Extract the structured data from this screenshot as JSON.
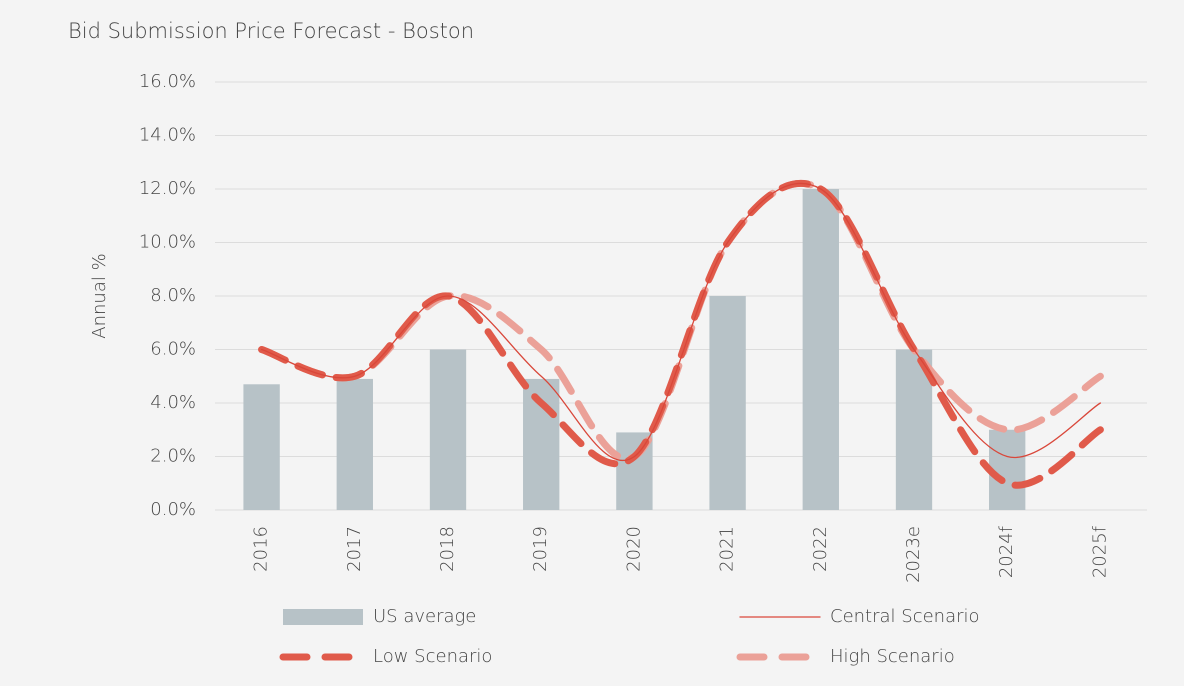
{
  "chart_data": {
    "type": "bar_line",
    "title": "Bid Submission Price Forecast - Boston",
    "y_label": "Annual %",
    "categories": [
      "2016",
      "2017",
      "2018",
      "2019",
      "2020",
      "2021",
      "2022",
      "2023e",
      "2024f",
      "2025f"
    ],
    "series": [
      {
        "name": "US average",
        "kind": "bar",
        "color": "#b7c2c7",
        "values": [
          4.7,
          4.9,
          6.0,
          4.9,
          2.9,
          8.0,
          12.0,
          6.0,
          3.0,
          null
        ]
      },
      {
        "name": "Central Scenario",
        "kind": "line",
        "style": "solid",
        "color": "#d9473a",
        "values": [
          6.0,
          5.0,
          8.0,
          5.0,
          2.0,
          10.0,
          12.0,
          6.0,
          2.0,
          4.0
        ]
      },
      {
        "name": "Low Scenario",
        "kind": "line",
        "style": "dashed",
        "color": "#e05a4a",
        "values": [
          6.0,
          5.0,
          8.0,
          4.0,
          2.0,
          10.0,
          12.0,
          6.0,
          1.0,
          3.0
        ]
      },
      {
        "name": "High Scenario",
        "kind": "line",
        "style": "dashed",
        "color": "#eba198",
        "values": [
          6.0,
          5.0,
          8.0,
          6.0,
          2.0,
          10.0,
          12.0,
          6.0,
          3.0,
          5.0
        ]
      }
    ],
    "ylim": [
      0,
      16
    ],
    "yticks": [
      {
        "value": 0,
        "label": "0.0%"
      },
      {
        "value": 2,
        "label": "2.0%"
      },
      {
        "value": 4,
        "label": "4.0%"
      },
      {
        "value": 6,
        "label": "6.0%"
      },
      {
        "value": 8,
        "label": "8.0%"
      },
      {
        "value": 10,
        "label": "10.0%"
      },
      {
        "value": 12,
        "label": "12.0%"
      },
      {
        "value": 14,
        "label": "14.0%"
      },
      {
        "value": 16,
        "label": "16.0%"
      }
    ],
    "grid": true,
    "legend": "bottom"
  }
}
